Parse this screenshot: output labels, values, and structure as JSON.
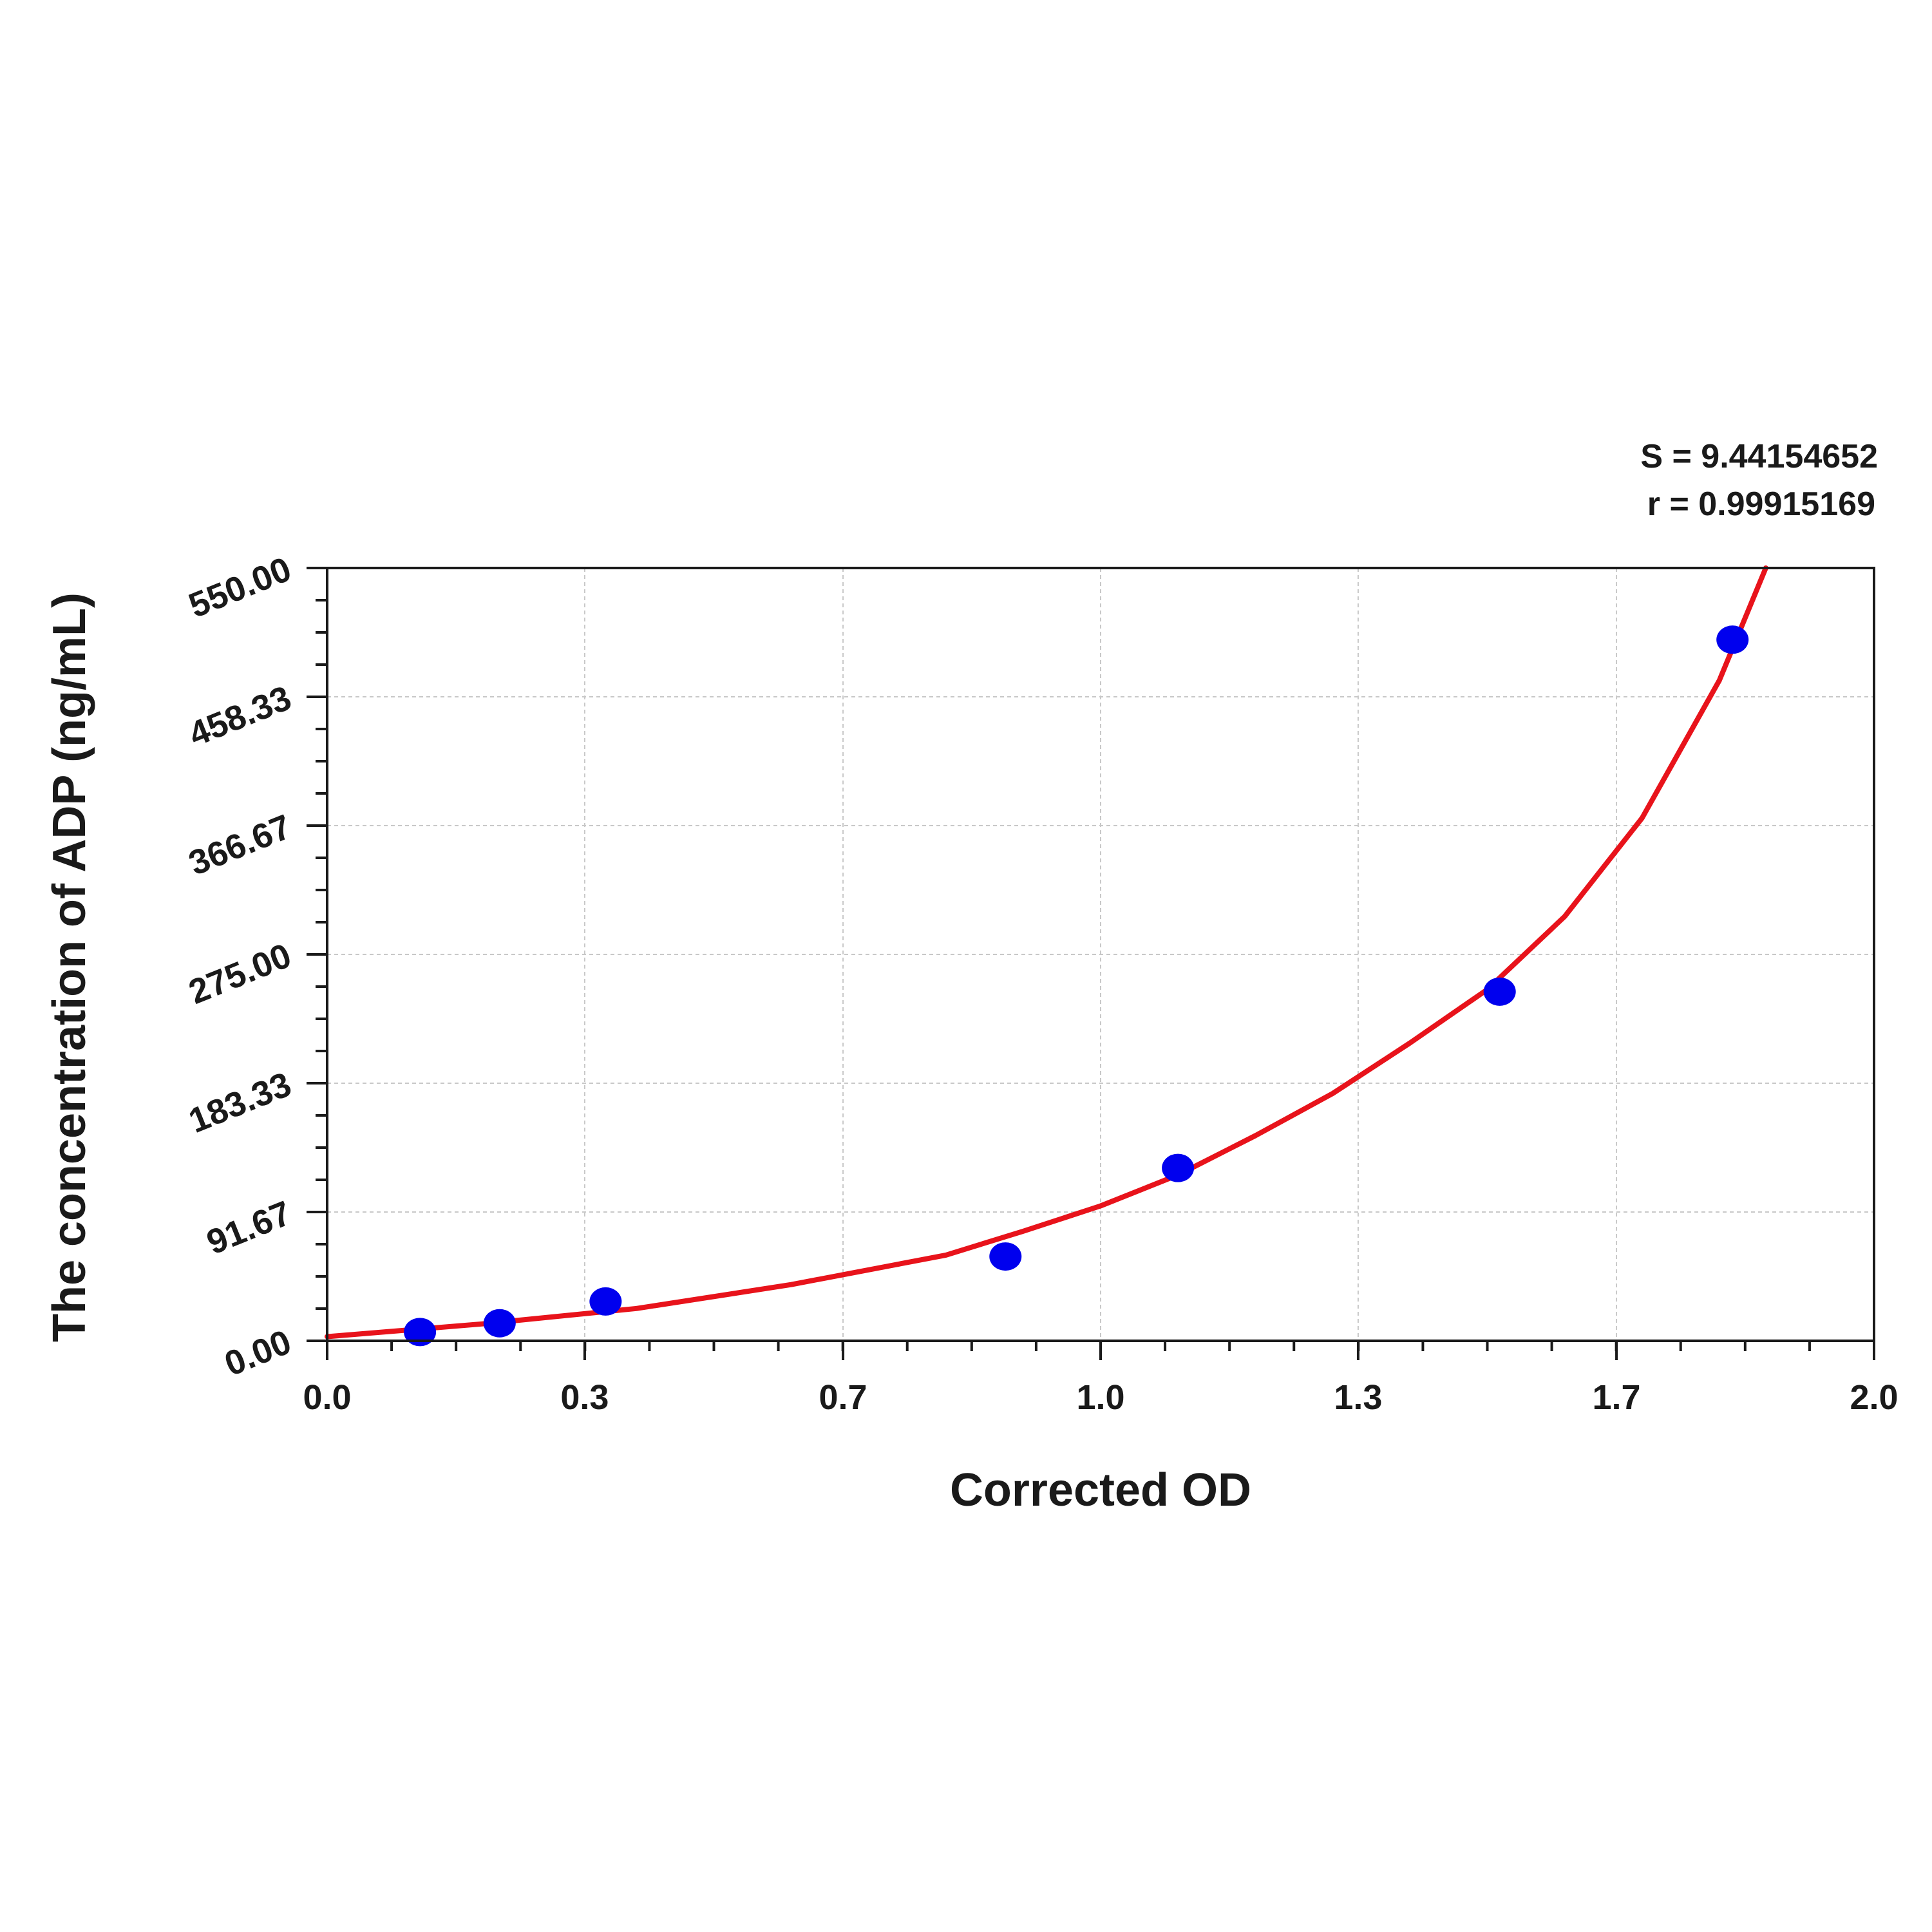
{
  "chart_data": {
    "type": "scatter",
    "xlabel": "Corrected OD",
    "ylabel": "The concentration of ADP (ng/mL)",
    "xlim": [
      0.0,
      2.0
    ],
    "ylim": [
      0.0,
      550.0
    ],
    "x_ticks": [
      "0.0",
      "0.3",
      "0.7",
      "1.0",
      "1.3",
      "1.7",
      "2.0"
    ],
    "x_tick_values": [
      0.0,
      0.333,
      0.667,
      1.0,
      1.333,
      1.667,
      2.0
    ],
    "y_ticks": [
      "0.00",
      "91.67",
      "183.33",
      "275.00",
      "366.67",
      "458.33",
      "550.00"
    ],
    "y_tick_values": [
      0.0,
      91.67,
      183.33,
      275.0,
      366.67,
      458.33,
      550.0
    ],
    "grid": true,
    "stats": {
      "s_label": "S = 9.44154652",
      "r_label": "r = 0.99915169"
    },
    "series": [
      {
        "kind": "points",
        "color": "#0000ee",
        "x": [
          0.12,
          0.223,
          0.36,
          0.877,
          1.1,
          1.516,
          1.817
        ],
        "y": [
          6.25,
          12.5,
          28.0,
          60.0,
          123.0,
          248.5,
          499.0
        ]
      },
      {
        "kind": "fit-curve",
        "color": "#e8131b",
        "x": [
          0.0,
          0.2,
          0.4,
          0.6,
          0.8,
          0.9,
          1.0,
          1.1,
          1.2,
          1.3,
          1.4,
          1.5,
          1.6,
          1.7,
          1.8,
          1.86
        ],
        "y": [
          3.0,
          12.0,
          23.0,
          40.0,
          61.0,
          78.0,
          96.0,
          118.0,
          146.0,
          176.0,
          212.0,
          250.0,
          302.0,
          372.0,
          470.0,
          550.0
        ]
      }
    ]
  }
}
